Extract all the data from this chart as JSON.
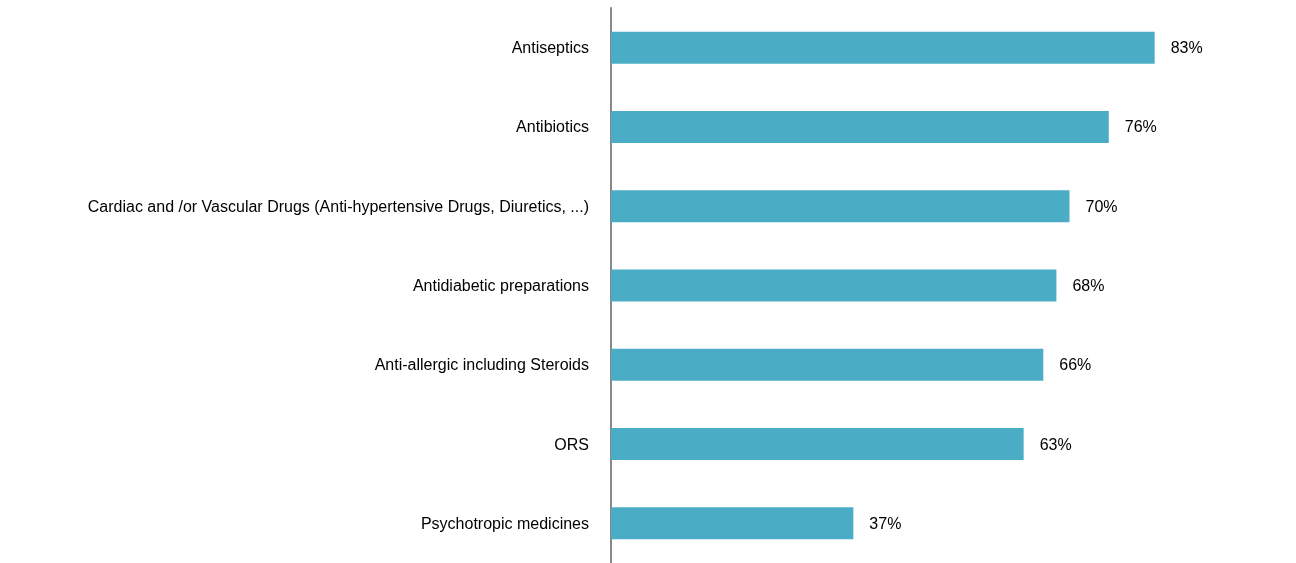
{
  "chart_data": {
    "type": "bar",
    "orientation": "horizontal",
    "categories": [
      "Antiseptics",
      "Antibiotics",
      "Cardiac and /or Vascular Drugs (Anti-hypertensive Drugs, Diuretics, ...)",
      "Antidiabetic preparations",
      "Anti-allergic including Steroids",
      "ORS",
      "Psychotropic medicines"
    ],
    "values": [
      83,
      76,
      70,
      68,
      66,
      63,
      37
    ],
    "value_labels": [
      "83%",
      "76%",
      "70%",
      "68%",
      "66%",
      "63%",
      "37%"
    ],
    "color": "#4bacc6"
  }
}
